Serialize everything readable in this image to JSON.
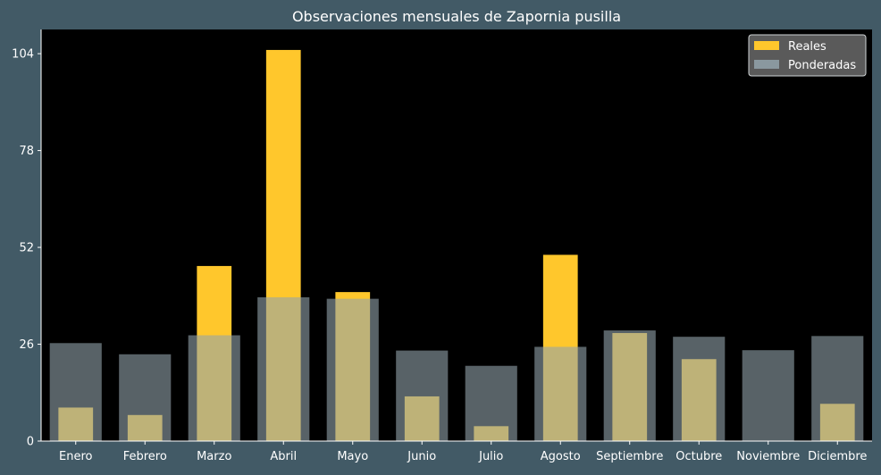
{
  "chart_data": {
    "type": "bar",
    "title": "Observaciones mensuales de Zapornia pusilla",
    "xlabel": "",
    "ylabel": "",
    "categories": [
      "Enero",
      "Febrero",
      "Marzo",
      "Abril",
      "Mayo",
      "Junio",
      "Julio",
      "Agosto",
      "Septiembre",
      "Octubre",
      "Noviembre",
      "Diciembre"
    ],
    "series": [
      {
        "name": "Reales",
        "color": "#ffc72c",
        "values": [
          9,
          7,
          47,
          105,
          40,
          12,
          4,
          50,
          29,
          22,
          0,
          10
        ]
      },
      {
        "name": "Ponderadas",
        "color": "#93a3ab",
        "values": [
          26.3,
          23.3,
          28.4,
          38.6,
          38.2,
          24.3,
          20.2,
          25.3,
          29.7,
          28.0,
          24.4,
          28.2
        ]
      }
    ],
    "yticks": [
      0,
      26,
      52,
      78,
      104
    ],
    "ylim": [
      0,
      110.5
    ],
    "grid": false,
    "legend_position": "top-right",
    "plot_background": "#000000",
    "figure_background": "#425a66",
    "text_color": "#ffffff"
  }
}
